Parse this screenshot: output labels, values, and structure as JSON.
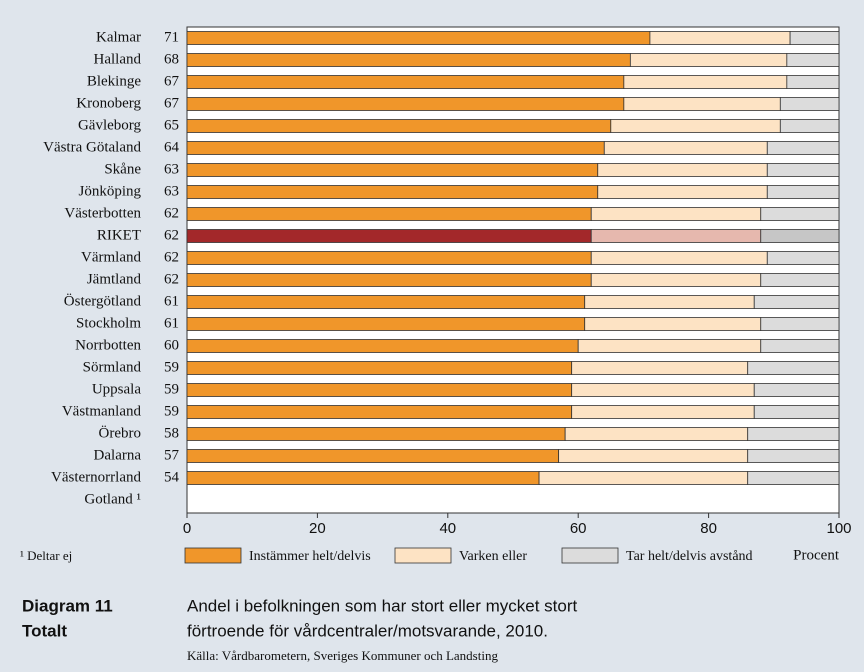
{
  "chart_data": {
    "type": "stacked_barh",
    "categories": [
      "Kalmar",
      "Halland",
      "Blekinge",
      "Kronoberg",
      "Gävleborg",
      "Västra Götaland",
      "Skåne",
      "Jönköping",
      "Västerbotten",
      "RIKET",
      "Värmland",
      "Jämtland",
      "Östergötland",
      "Stockholm",
      "Norrbotten",
      "Sörmland",
      "Uppsala",
      "Västmanland",
      "Örebro",
      "Dalarna",
      "Västernorrland",
      "Gotland ¹"
    ],
    "series": [
      {
        "name": "Instämmer helt/delvis",
        "color": "#f0962a",
        "values": [
          71,
          68,
          67,
          67,
          65,
          64,
          63,
          63,
          62,
          62,
          62,
          62,
          61,
          61,
          60,
          59,
          59,
          59,
          58,
          57,
          54,
          null
        ]
      },
      {
        "name": "Varken eller",
        "color": "#fde3c4",
        "values": [
          21.5,
          24,
          25,
          24,
          26,
          25,
          26,
          26,
          26,
          26,
          27,
          26,
          26,
          27,
          28,
          27,
          28,
          28,
          28,
          29,
          32,
          null
        ]
      },
      {
        "name": "Tar helt/delvis avstånd",
        "color": "#dcdcdc",
        "values": [
          7.5,
          8,
          8,
          9,
          9,
          11,
          11,
          11,
          12,
          12,
          11,
          12,
          13,
          12,
          12,
          14,
          13,
          13,
          14,
          14,
          14,
          null
        ]
      }
    ],
    "highlight": {
      "index": 9,
      "colors": [
        "#a3282a",
        "#e6b8ae",
        "#c6c6c6"
      ]
    },
    "xlim": [
      0,
      100
    ],
    "xticks": [
      0,
      20,
      40,
      60,
      80,
      100
    ],
    "xlabel": "Procent",
    "footnote": "¹ Deltar ej",
    "diagram_label": "Diagram 11",
    "diagram_sublabel": "Totalt",
    "title": [
      "Andel i befolkningen som har stort eller mycket stort",
      "förtroende för vårdcentraler/motsvarande, 2010."
    ],
    "source": "Källa: Vårdbarometern, Sveriges Kommuner och Landsting"
  }
}
